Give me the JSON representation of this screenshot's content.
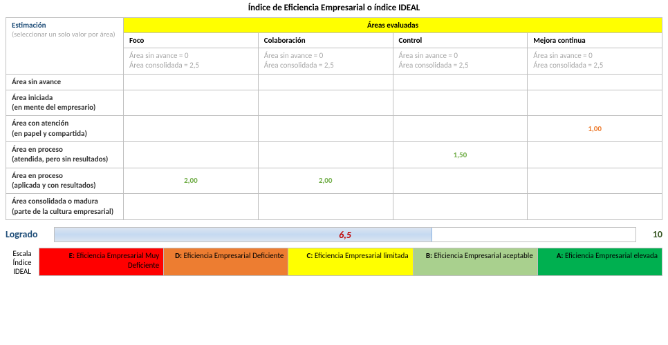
{
  "title": "Índice de Eficiencia Empresarial o índice IDEAL",
  "estimation": {
    "label": "Estimación",
    "sub": "(seleccionar un solo valor por área)"
  },
  "areas_header": "Áreas evaluadas",
  "columns": [
    "Foco",
    "Colaboración",
    "Control",
    "Mejora continua"
  ],
  "hint_line1": "Área sin avance = 0",
  "hint_line2": "Área consolidada = 2,5",
  "rows": [
    {
      "label_l1": "Área sin avance",
      "label_l2": "",
      "values": [
        "",
        "",
        "",
        ""
      ],
      "style": [
        "",
        "",
        "",
        ""
      ]
    },
    {
      "label_l1": "Área iniciada",
      "label_l2": "(en mente del empresario)",
      "values": [
        "",
        "",
        "",
        ""
      ],
      "style": [
        "",
        "",
        "",
        ""
      ]
    },
    {
      "label_l1": "Área con atención",
      "label_l2": "(en papel y compartida)",
      "values": [
        "",
        "",
        "",
        "1,00"
      ],
      "style": [
        "",
        "",
        "",
        "orange"
      ]
    },
    {
      "label_l1": "Área en proceso",
      "label_l2": "(atendida, pero sin resultados)",
      "values": [
        "",
        "",
        "1,50",
        ""
      ],
      "style": [
        "",
        "",
        "green",
        ""
      ]
    },
    {
      "label_l1": "Área en proceso",
      "label_l2": "(aplicada y con resultados)",
      "values": [
        "2,00",
        "2,00",
        "",
        ""
      ],
      "style": [
        "green",
        "green",
        "",
        ""
      ]
    },
    {
      "label_l1": "Área consolidada o madura",
      "label_l2": "(parte de la cultura empresarial)",
      "values": [
        "",
        "",
        "",
        ""
      ],
      "style": [
        "",
        "",
        "",
        ""
      ]
    }
  ],
  "logrado": {
    "label": "Logrado",
    "value": "6,5",
    "max": "10",
    "fill_pct": 65
  },
  "scale": {
    "label_l1": "Escala",
    "label_l2": "Índice",
    "label_l3": "IDEAL",
    "cells": [
      {
        "grade": "E:",
        "text": "Eficiencia Empresarial Muy Deficiente",
        "bg": "#ff0000"
      },
      {
        "grade": "D:",
        "text": "Eficiencia Empresarial Deficiente",
        "bg": "#ed7d31"
      },
      {
        "grade": "C:",
        "text": "Eficiencia Empresarial limitada",
        "bg": "#ffff00"
      },
      {
        "grade": "B:",
        "text": "Eficiencia Empresarial aceptable",
        "bg": "#a9d08e"
      },
      {
        "grade": "A:",
        "text": "Eficiencia Empresarial elevada",
        "bg": "#00b050"
      }
    ]
  }
}
